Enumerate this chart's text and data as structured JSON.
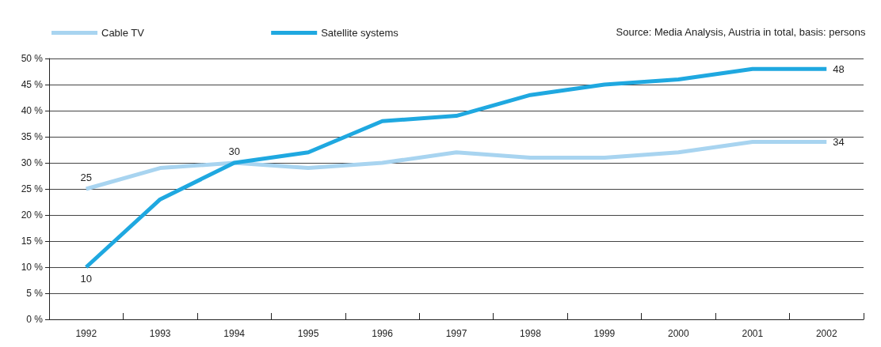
{
  "chart_data": {
    "type": "line",
    "categories": [
      "1992",
      "1993",
      "1994",
      "1995",
      "1996",
      "1997",
      "1998",
      "1999",
      "2000",
      "2001",
      "2002"
    ],
    "series": [
      {
        "name": "Cable TV",
        "color": "#a8d4f0",
        "values": [
          25,
          29,
          30,
          29,
          30,
          32,
          31,
          31,
          32,
          34,
          34
        ],
        "value_labels": [
          "25",
          null,
          null,
          null,
          null,
          null,
          null,
          null,
          null,
          null,
          "34"
        ]
      },
      {
        "name": "Satellite systems",
        "color": "#1fa8e0",
        "values": [
          10,
          23,
          30,
          32,
          38,
          39,
          43,
          45,
          46,
          48,
          48
        ],
        "value_labels": [
          "10",
          null,
          "30",
          null,
          null,
          null,
          null,
          null,
          null,
          null,
          "48"
        ]
      }
    ],
    "ylim": [
      0,
      50
    ],
    "yticks": [
      {
        "value": 0,
        "label": "0 %"
      },
      {
        "value": 5,
        "label": "5 %"
      },
      {
        "value": 10,
        "label": "10 %"
      },
      {
        "value": 15,
        "label": "15 %"
      },
      {
        "value": 20,
        "label": "20 %"
      },
      {
        "value": 25,
        "label": "25 %"
      },
      {
        "value": 30,
        "label": "30 %"
      },
      {
        "value": 35,
        "label": "35 %"
      },
      {
        "value": 40,
        "label": "40 %"
      },
      {
        "value": 45,
        "label": "45 %"
      },
      {
        "value": 50,
        "label": "50 %"
      }
    ],
    "grid": "y",
    "legend": "top left",
    "marker": "none",
    "line_style": "solid",
    "annotations": [
      "Source: Media Analysis, Austria in total, basis: persons"
    ]
  }
}
